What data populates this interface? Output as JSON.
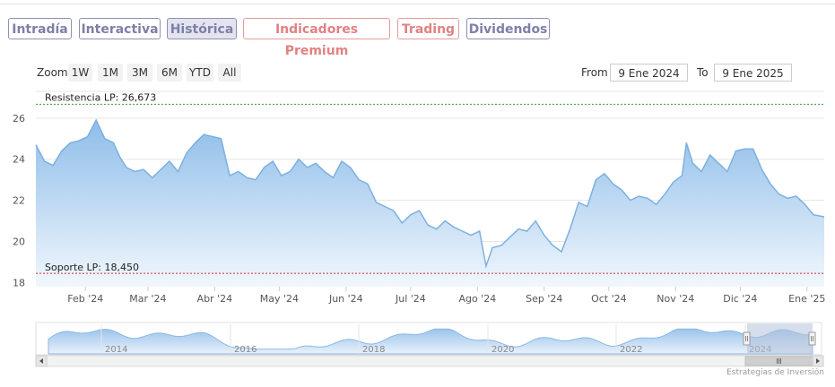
{
  "tabs": [
    {
      "label": "Intradía",
      "color": "#7e7fa9",
      "bg": "#ffffff",
      "border": "#8e8fb6"
    },
    {
      "label": "Interactiva",
      "color": "#7e7fa9",
      "bg": "#ffffff",
      "border": "#8e8fb6"
    },
    {
      "label": "Histórica",
      "color": "#7e7fa9",
      "bg": "#e4e4ee",
      "border": "#8e8fb6"
    },
    {
      "label": "Indicadores Premium",
      "color": "#e08282",
      "bg": "#ffffff",
      "border": "#e59a9a"
    },
    {
      "label": "Trading",
      "color": "#e08282",
      "bg": "#ffffff",
      "border": "#e59a9a"
    },
    {
      "label": "Dividendos",
      "color": "#7e7fa9",
      "bg": "#ffffff",
      "border": "#8e8fb6"
    }
  ],
  "zoom": {
    "label": "Zoom",
    "buttons": [
      "1W",
      "1M",
      "3M",
      "6M",
      "YTD",
      "All"
    ]
  },
  "range": {
    "from_label": "From",
    "from_value": "9 Ene 2024",
    "to_label": "To",
    "to_value": "9 Ene 2025"
  },
  "colors": {
    "line": "#7cb0e0",
    "fill_top": "#8ebde9",
    "fill_bottom": "#f1f7fd",
    "resistance": "#3a9a3a",
    "support": "#d03030",
    "grid": "#e6e6e6"
  },
  "credit": "Estrategias de Inversión",
  "chart_data": {
    "type": "area",
    "title": "",
    "xlabel": "",
    "ylabel": "",
    "ylim": [
      17.8,
      27.3
    ],
    "yticks": [
      18,
      20,
      22,
      24,
      26
    ],
    "xlim": [
      "2024-01-09",
      "2025-01-09"
    ],
    "xticks": [
      {
        "date": "2024-02-01",
        "label": "Feb '24"
      },
      {
        "date": "2024-03-01",
        "label": "Mar '24"
      },
      {
        "date": "2024-04-01",
        "label": "Abr '24"
      },
      {
        "date": "2024-05-01",
        "label": "May '24"
      },
      {
        "date": "2024-06-01",
        "label": "Jun '24"
      },
      {
        "date": "2024-07-01",
        "label": "Jul '24"
      },
      {
        "date": "2024-08-01",
        "label": "Ago '24"
      },
      {
        "date": "2024-09-01",
        "label": "Sep '24"
      },
      {
        "date": "2024-10-01",
        "label": "Oct '24"
      },
      {
        "date": "2024-11-01",
        "label": "Nov '24"
      },
      {
        "date": "2024-12-01",
        "label": "Dic '24"
      },
      {
        "date": "2025-01-01",
        "label": "Ene '25"
      }
    ],
    "grid": true,
    "resistance": {
      "label": "Resistencia LP: 26,673",
      "value": 26.673
    },
    "support": {
      "label": "Soporte LP: 18,450",
      "value": 18.45
    },
    "series": [
      {
        "x": [
          "2024-01-09",
          "2024-01-13",
          "2024-01-17",
          "2024-01-21",
          "2024-01-25",
          "2024-01-29",
          "2024-02-02",
          "2024-02-06",
          "2024-02-10",
          "2024-02-14",
          "2024-02-17",
          "2024-02-20",
          "2024-02-24",
          "2024-02-28",
          "2024-03-03",
          "2024-03-07",
          "2024-03-11",
          "2024-03-15",
          "2024-03-19",
          "2024-03-23",
          "2024-03-27",
          "2024-03-31",
          "2024-04-04",
          "2024-04-08",
          "2024-04-12",
          "2024-04-16",
          "2024-04-20",
          "2024-04-24",
          "2024-04-28",
          "2024-05-02",
          "2024-05-06",
          "2024-05-10",
          "2024-05-14",
          "2024-05-18",
          "2024-05-22",
          "2024-05-26",
          "2024-05-30",
          "2024-06-03",
          "2024-06-07",
          "2024-06-11",
          "2024-06-15",
          "2024-06-19",
          "2024-06-23",
          "2024-06-27",
          "2024-07-01",
          "2024-07-05",
          "2024-07-09",
          "2024-07-13",
          "2024-07-17",
          "2024-07-21",
          "2024-07-25",
          "2024-07-29",
          "2024-08-02",
          "2024-08-05",
          "2024-08-08",
          "2024-08-12",
          "2024-08-16",
          "2024-08-20",
          "2024-08-24",
          "2024-08-28",
          "2024-09-01",
          "2024-09-05",
          "2024-09-09",
          "2024-09-13",
          "2024-09-17",
          "2024-09-21",
          "2024-09-25",
          "2024-09-29",
          "2024-10-03",
          "2024-10-07",
          "2024-10-11",
          "2024-10-15",
          "2024-10-19",
          "2024-10-23",
          "2024-10-27",
          "2024-10-31",
          "2024-11-04",
          "2024-11-06",
          "2024-11-09",
          "2024-11-13",
          "2024-11-17",
          "2024-11-21",
          "2024-11-25",
          "2024-11-29",
          "2024-12-03",
          "2024-12-07",
          "2024-12-11",
          "2024-12-15",
          "2024-12-19",
          "2024-12-23",
          "2024-12-27",
          "2024-12-31",
          "2025-01-04",
          "2025-01-09"
        ],
        "values": [
          24.7,
          23.9,
          23.7,
          24.4,
          24.8,
          24.9,
          25.1,
          25.9,
          25.0,
          24.8,
          24.1,
          23.6,
          23.4,
          23.5,
          23.1,
          23.5,
          23.9,
          23.4,
          24.3,
          24.8,
          25.2,
          25.1,
          25.0,
          23.2,
          23.4,
          23.1,
          23.0,
          23.6,
          23.9,
          23.2,
          23.4,
          24.0,
          23.6,
          23.8,
          23.4,
          23.1,
          23.9,
          23.6,
          23.0,
          22.8,
          21.9,
          21.7,
          21.5,
          20.9,
          21.3,
          21.5,
          20.8,
          20.6,
          21.0,
          20.7,
          20.5,
          20.3,
          20.5,
          18.8,
          19.7,
          19.8,
          20.2,
          20.6,
          20.5,
          21.0,
          20.3,
          19.8,
          19.5,
          20.6,
          21.9,
          21.7,
          23.0,
          23.3,
          22.8,
          22.5,
          22.0,
          22.2,
          22.1,
          21.8,
          22.3,
          22.9,
          23.2,
          24.8,
          23.8,
          23.4,
          24.2,
          23.8,
          23.4,
          24.4,
          24.5,
          24.5,
          23.5,
          22.8,
          22.3,
          22.1,
          22.2,
          21.8,
          21.3,
          21.2
        ]
      }
    ],
    "navigator": {
      "xticks": [
        "2014",
        "2016",
        "2018",
        "2020",
        "2022",
        "2024"
      ]
    }
  }
}
